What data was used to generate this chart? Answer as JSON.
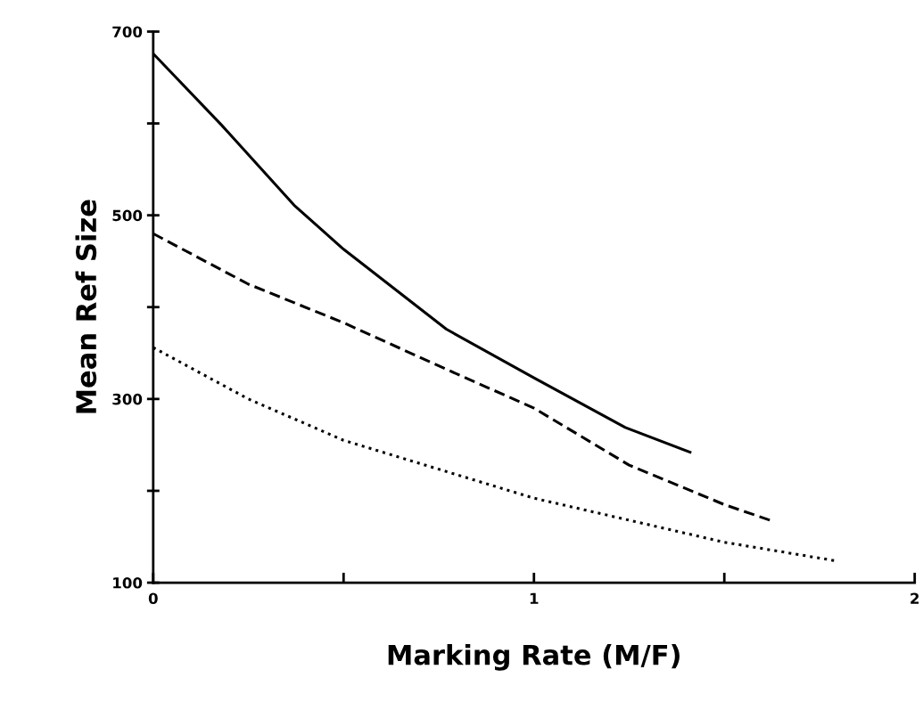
{
  "chart_data": {
    "type": "line",
    "xlabel": "Marking Rate (M/F)",
    "ylabel": "Mean Ref Size",
    "xlim": [
      0,
      2
    ],
    "ylim": [
      100,
      700
    ],
    "xticks": [
      0,
      {
        "value": 0.5,
        "label": null
      },
      1,
      {
        "value": 1.5,
        "label": null
      },
      2
    ],
    "yticks": [
      100,
      {
        "value": 200,
        "label": null
      },
      300,
      {
        "value": 400,
        "label": null
      },
      500,
      {
        "value": 600,
        "label": null
      },
      700
    ],
    "grid": false,
    "legend": false,
    "marker": "none",
    "series": [
      {
        "color": "#000000",
        "line_style": "solid",
        "x": [
          0,
          0.18,
          0.37,
          0.5,
          0.77,
          1.0,
          1.24,
          1.41
        ],
        "values": [
          676,
          598,
          511,
          463,
          376,
          323,
          269,
          242
        ]
      },
      {
        "color": "#000000",
        "line_style": "dashed",
        "x": [
          0,
          0.25,
          0.5,
          0.75,
          1.0,
          1.25,
          1.5,
          1.62
        ],
        "values": [
          480,
          425,
          383,
          336,
          290,
          228,
          185,
          168
        ]
      },
      {
        "color": "#000000",
        "line_style": "dotted",
        "x": [
          0,
          0.25,
          0.5,
          1.0,
          1.5,
          1.79
        ],
        "values": [
          356,
          300,
          255,
          192,
          144,
          124
        ]
      }
    ]
  }
}
